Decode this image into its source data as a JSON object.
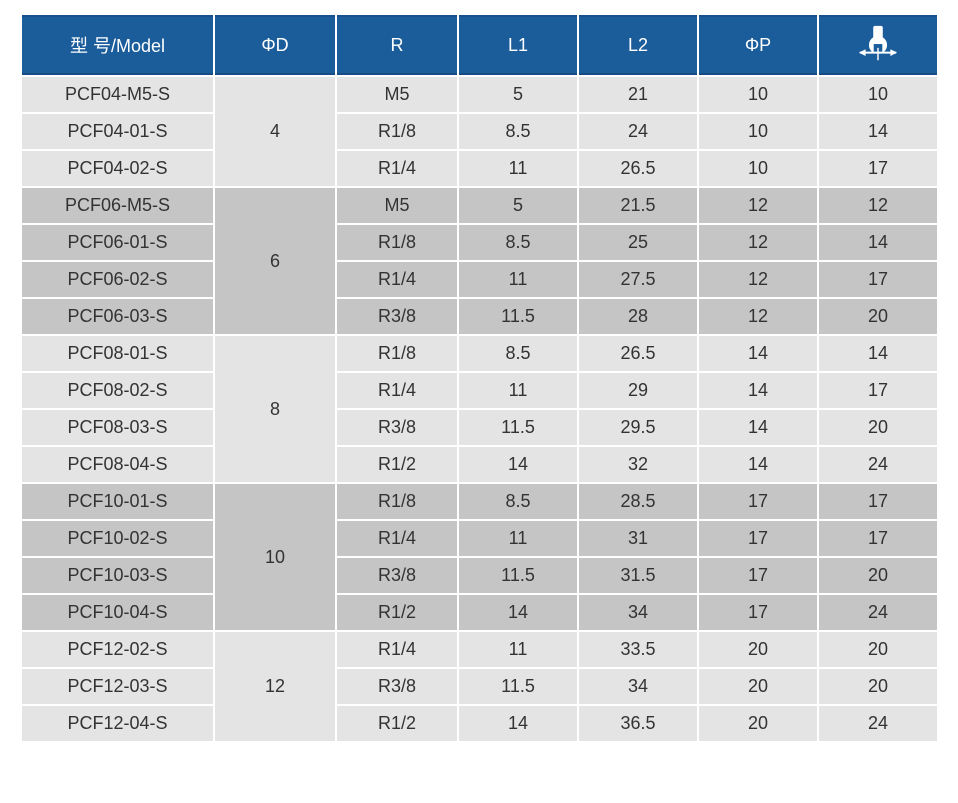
{
  "colors": {
    "header_bg": "#1b5c9b",
    "header_text": "#ffffff",
    "group_light": "#e4e4e4",
    "group_dark": "#c5c5c5",
    "cell_text": "#333333"
  },
  "icons": {
    "wrench_header": "wrench-size-icon"
  },
  "table": {
    "columns": [
      {
        "key": "model",
        "label": "型 号/Model"
      },
      {
        "key": "d",
        "label": "ΦD"
      },
      {
        "key": "r",
        "label": "R"
      },
      {
        "key": "l1",
        "label": "L1"
      },
      {
        "key": "l2",
        "label": "L2"
      },
      {
        "key": "p",
        "label": "ΦP"
      },
      {
        "key": "wrench",
        "label": "",
        "icon": "wrench-size-icon"
      }
    ],
    "groups": [
      {
        "d": "4",
        "rows": [
          {
            "model": "PCF04-M5-S",
            "r": "M5",
            "l1": "5",
            "l2": "21",
            "p": "10",
            "w": "10"
          },
          {
            "model": "PCF04-01-S",
            "r": "R1/8",
            "l1": "8.5",
            "l2": "24",
            "p": "10",
            "w": "14"
          },
          {
            "model": "PCF04-02-S",
            "r": "R1/4",
            "l1": "11",
            "l2": "26.5",
            "p": "10",
            "w": "17"
          }
        ]
      },
      {
        "d": "6",
        "rows": [
          {
            "model": "PCF06-M5-S",
            "r": "M5",
            "l1": "5",
            "l2": "21.5",
            "p": "12",
            "w": "12"
          },
          {
            "model": "PCF06-01-S",
            "r": "R1/8",
            "l1": "8.5",
            "l2": "25",
            "p": "12",
            "w": "14"
          },
          {
            "model": "PCF06-02-S",
            "r": "R1/4",
            "l1": "11",
            "l2": "27.5",
            "p": "12",
            "w": "17"
          },
          {
            "model": "PCF06-03-S",
            "r": "R3/8",
            "l1": "11.5",
            "l2": "28",
            "p": "12",
            "w": "20"
          }
        ]
      },
      {
        "d": "8",
        "rows": [
          {
            "model": "PCF08-01-S",
            "r": "R1/8",
            "l1": "8.5",
            "l2": "26.5",
            "p": "14",
            "w": "14"
          },
          {
            "model": "PCF08-02-S",
            "r": "R1/4",
            "l1": "11",
            "l2": "29",
            "p": "14",
            "w": "17"
          },
          {
            "model": "PCF08-03-S",
            "r": "R3/8",
            "l1": "11.5",
            "l2": "29.5",
            "p": "14",
            "w": "20"
          },
          {
            "model": "PCF08-04-S",
            "r": "R1/2",
            "l1": "14",
            "l2": "32",
            "p": "14",
            "w": "24"
          }
        ]
      },
      {
        "d": "10",
        "rows": [
          {
            "model": "PCF10-01-S",
            "r": "R1/8",
            "l1": "8.5",
            "l2": "28.5",
            "p": "17",
            "w": "17"
          },
          {
            "model": "PCF10-02-S",
            "r": "R1/4",
            "l1": "11",
            "l2": "31",
            "p": "17",
            "w": "17"
          },
          {
            "model": "PCF10-03-S",
            "r": "R3/8",
            "l1": "11.5",
            "l2": "31.5",
            "p": "17",
            "w": "20"
          },
          {
            "model": "PCF10-04-S",
            "r": "R1/2",
            "l1": "14",
            "l2": "34",
            "p": "17",
            "w": "24"
          }
        ]
      },
      {
        "d": "12",
        "rows": [
          {
            "model": "PCF12-02-S",
            "r": "R1/4",
            "l1": "11",
            "l2": "33.5",
            "p": "20",
            "w": "20"
          },
          {
            "model": "PCF12-03-S",
            "r": "R3/8",
            "l1": "11.5",
            "l2": "34",
            "p": "20",
            "w": "20"
          },
          {
            "model": "PCF12-04-S",
            "r": "R1/2",
            "l1": "14",
            "l2": "36.5",
            "p": "20",
            "w": "24"
          }
        ]
      }
    ]
  }
}
